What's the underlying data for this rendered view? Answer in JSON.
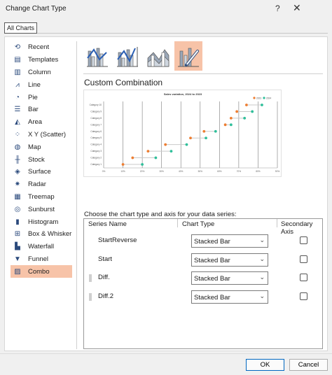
{
  "window": {
    "title": "Change Chart Type",
    "help": "?",
    "close": "✕"
  },
  "tabs": [
    {
      "label": "All Charts"
    }
  ],
  "sidebar": {
    "items": [
      {
        "label": "Recent",
        "icon": "recent-icon",
        "glyph": "⟲"
      },
      {
        "label": "Templates",
        "icon": "templates-icon",
        "glyph": "▤"
      },
      {
        "label": "Column",
        "icon": "column-chart-icon",
        "glyph": "▥"
      },
      {
        "label": "Line",
        "icon": "line-chart-icon",
        "glyph": "⩘"
      },
      {
        "label": "Pie",
        "icon": "pie-chart-icon",
        "glyph": "◔"
      },
      {
        "label": "Bar",
        "icon": "bar-chart-icon",
        "glyph": "☰"
      },
      {
        "label": "Area",
        "icon": "area-chart-icon",
        "glyph": "◭"
      },
      {
        "label": "X Y (Scatter)",
        "icon": "scatter-chart-icon",
        "glyph": "⁘"
      },
      {
        "label": "Map",
        "icon": "map-chart-icon",
        "glyph": "◍"
      },
      {
        "label": "Stock",
        "icon": "stock-chart-icon",
        "glyph": "╫"
      },
      {
        "label": "Surface",
        "icon": "surface-chart-icon",
        "glyph": "◈"
      },
      {
        "label": "Radar",
        "icon": "radar-chart-icon",
        "glyph": "✷"
      },
      {
        "label": "Treemap",
        "icon": "treemap-chart-icon",
        "glyph": "▦"
      },
      {
        "label": "Sunburst",
        "icon": "sunburst-chart-icon",
        "glyph": "◎"
      },
      {
        "label": "Histogram",
        "icon": "histogram-chart-icon",
        "glyph": "▮"
      },
      {
        "label": "Box & Whisker",
        "icon": "box-whisker-chart-icon",
        "glyph": "⊞"
      },
      {
        "label": "Waterfall",
        "icon": "waterfall-chart-icon",
        "glyph": "▙"
      },
      {
        "label": "Funnel",
        "icon": "funnel-chart-icon",
        "glyph": "▼"
      },
      {
        "label": "Combo",
        "icon": "combo-chart-icon",
        "glyph": "▨"
      }
    ],
    "selected": "Combo"
  },
  "colors": {
    "accent": "#f7c3a8",
    "orange": "#ed7d31",
    "teal": "#2fbf9a",
    "blue": "#4472c4",
    "gray": "#a5a5a5"
  },
  "combo": {
    "heading": "Custom Combination",
    "thumbnails": [
      {
        "icon": "clustered-column-line-icon"
      },
      {
        "icon": "clustered-column-line-secondary-icon"
      },
      {
        "icon": "stacked-area-clustered-column-icon"
      },
      {
        "icon": "custom-combination-icon"
      }
    ]
  },
  "preview_chart": {
    "title": "Sales variation, 2024 to 2023",
    "legend": [
      "2023",
      "2024"
    ],
    "categories": [
      "Category 1",
      "Category 2",
      "Category 3",
      "Category 4",
      "Category 5",
      "Category 6",
      "Category 7",
      "Category 8",
      "Category 9",
      "Category 10"
    ],
    "x_ticks": [
      "0%",
      "10%",
      "20%",
      "30%",
      "40%",
      "50%",
      "60%",
      "70%",
      "80%",
      "90%"
    ]
  },
  "chart_data": {
    "type": "scatter",
    "title": "Sales variation, 2024 to 2023",
    "xlabel": "",
    "ylabel": "",
    "categories": [
      "Category 1",
      "Category 2",
      "Category 3",
      "Category 4",
      "Category 5",
      "Category 6",
      "Category 7",
      "Category 8",
      "Category 9",
      "Category 10"
    ],
    "xlim": [
      0,
      0.9
    ],
    "series": [
      {
        "name": "2023",
        "values": [
          0.1,
          0.15,
          0.23,
          0.32,
          0.45,
          0.52,
          0.63,
          0.66,
          0.69,
          0.74
        ]
      },
      {
        "name": "2024",
        "values": [
          0.2,
          0.27,
          0.35,
          0.43,
          0.53,
          0.58,
          0.66,
          0.73,
          0.77,
          0.82
        ]
      }
    ],
    "legend": "top-right",
    "grid": true
  },
  "series_section": {
    "label": "Choose the chart type and axis for your data series:",
    "headers": {
      "name": "Series Name",
      "type": "Chart Type",
      "axis": "Secondary Axis"
    },
    "rows": [
      {
        "name": "StartReverse",
        "type": "Stacked Bar",
        "secondary": false,
        "handle": false
      },
      {
        "name": "Start",
        "type": "Stacked Bar",
        "secondary": false,
        "handle": false
      },
      {
        "name": "Diff.",
        "type": "Stacked Bar",
        "secondary": false,
        "handle": true
      },
      {
        "name": "Diff.2",
        "type": "Stacked Bar",
        "secondary": false,
        "handle": true
      }
    ]
  },
  "buttons": {
    "ok": "OK",
    "cancel": "Cancel"
  }
}
